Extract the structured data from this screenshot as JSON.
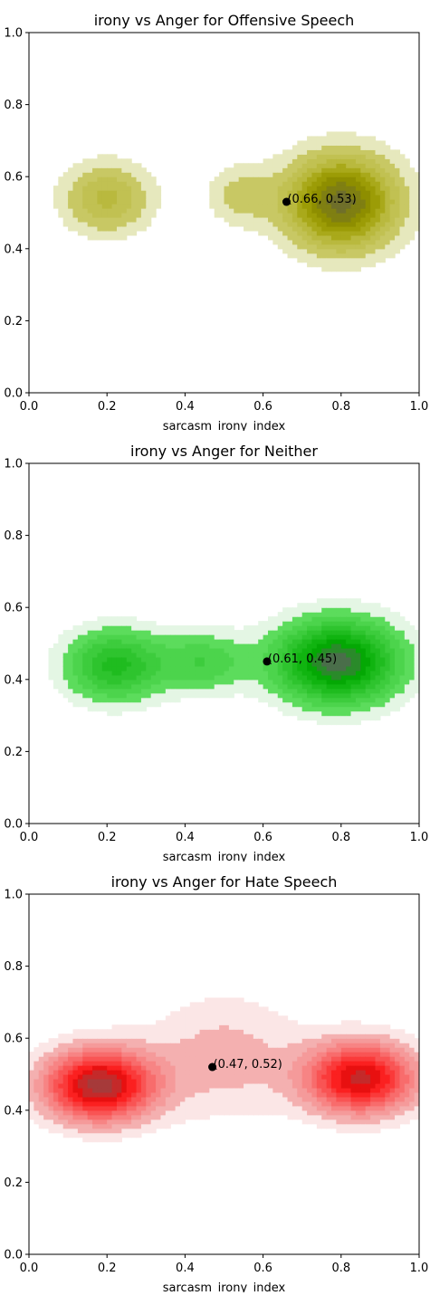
{
  "chart_data": [
    {
      "type": "contour",
      "title": "irony vs Anger for Offensive Speech",
      "xlabel": "sarcasm_irony_index",
      "ylabel": "",
      "xlim": [
        0,
        1
      ],
      "ylim": [
        0,
        1
      ],
      "xticks": [
        "0.0",
        "0.2",
        "0.4",
        "0.6",
        "0.8",
        "1.0"
      ],
      "yticks": [
        "0.0",
        "0.2",
        "0.4",
        "0.6",
        "0.8",
        "1.0"
      ],
      "grid": false,
      "colors": [
        "#e6e8bd",
        "#c8c864",
        "#c1c152",
        "#b9b93e",
        "#a9a91a",
        "#9c9c06",
        "#8e8e00",
        "#7f7f12",
        "#6f6f2a"
      ],
      "density_peaks": [
        {
          "x": 0.2,
          "y": 0.54,
          "sx": 0.08,
          "sy": 0.07,
          "w": 0.45
        },
        {
          "x": 0.54,
          "y": 0.55,
          "sx": 0.06,
          "sy": 0.06,
          "w": 0.25
        },
        {
          "x": 0.8,
          "y": 0.53,
          "sx": 0.1,
          "sy": 0.09,
          "w": 1.0
        }
      ],
      "point": {
        "x": 0.66,
        "y": 0.53,
        "label": "(0.66, 0.53)"
      }
    },
    {
      "type": "contour",
      "title": "irony vs Anger for Neither",
      "xlabel": "sarcasm_irony_index",
      "ylabel": "",
      "xlim": [
        0,
        1
      ],
      "ylim": [
        0,
        1
      ],
      "xticks": [
        "0.0",
        "0.2",
        "0.4",
        "0.6",
        "0.8",
        "1.0"
      ],
      "yticks": [
        "0.0",
        "0.2",
        "0.4",
        "0.6",
        "0.8",
        "1.0"
      ],
      "grid": false,
      "colors": [
        "#e4f6e4",
        "#5cdc5c",
        "#4cd44c",
        "#3dcc3d",
        "#2ec42e",
        "#1fbc1f",
        "#10b410",
        "#04a804",
        "#2a8a2a",
        "#4a6e4a"
      ],
      "density_peaks": [
        {
          "x": 0.22,
          "y": 0.44,
          "sx": 0.09,
          "sy": 0.07,
          "w": 0.6
        },
        {
          "x": 0.45,
          "y": 0.45,
          "sx": 0.08,
          "sy": 0.06,
          "w": 0.35
        },
        {
          "x": 0.79,
          "y": 0.45,
          "sx": 0.11,
          "sy": 0.08,
          "w": 1.0
        }
      ],
      "point": {
        "x": 0.61,
        "y": 0.45,
        "label": "(0.61, 0.45)"
      }
    },
    {
      "type": "contour",
      "title": "irony vs Anger for Hate Speech",
      "xlabel": "sarcasm_irony_index",
      "ylabel": "",
      "xlim": [
        0,
        1
      ],
      "ylim": [
        0,
        1
      ],
      "xticks": [
        "0.0",
        "0.2",
        "0.4",
        "0.6",
        "0.8",
        "1.0"
      ],
      "yticks": [
        "0.0",
        "0.2",
        "0.4",
        "0.6",
        "0.8",
        "1.0"
      ],
      "grid": false,
      "colors": [
        "#fbe6e6",
        "#f4b0b0",
        "#f59a9a",
        "#f78484",
        "#f86c6c",
        "#f95454",
        "#fa3a3a",
        "#fb2020",
        "#e81010",
        "#c42a2a",
        "#a63a3a"
      ],
      "density_peaks": [
        {
          "x": 0.18,
          "y": 0.47,
          "sx": 0.1,
          "sy": 0.07,
          "w": 1.0
        },
        {
          "x": 0.5,
          "y": 0.55,
          "sx": 0.14,
          "sy": 0.12,
          "w": 0.22
        },
        {
          "x": 0.85,
          "y": 0.49,
          "sx": 0.1,
          "sy": 0.07,
          "w": 0.9
        }
      ],
      "point": {
        "x": 0.47,
        "y": 0.52,
        "label": "(0.47, 0.52)"
      }
    }
  ]
}
